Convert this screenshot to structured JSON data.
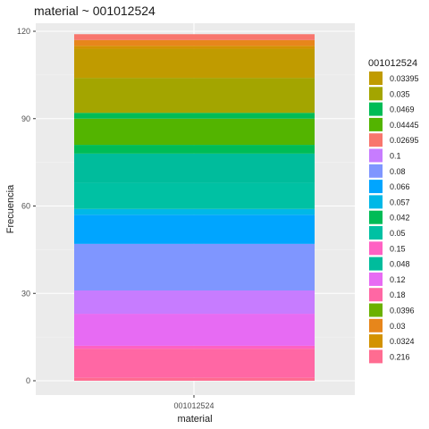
{
  "chart_data": {
    "type": "bar",
    "title": "material ~ 001012524",
    "xlabel": "material",
    "ylabel": "Frecuencia",
    "categories": [
      "001012524"
    ],
    "ylim": [
      0,
      120
    ],
    "yticks": [
      0,
      30,
      60,
      90,
      120
    ],
    "legend_title": "001012524",
    "legend_position": "right",
    "grid": true,
    "series": [
      {
        "name": "0.03395",
        "value": 10,
        "color": "#C09B00"
      },
      {
        "name": "0.035",
        "value": 12,
        "color": "#A3A500"
      },
      {
        "name": "0.0469",
        "value": 3,
        "color": "#00BC56"
      },
      {
        "name": "0.04445",
        "value": 9,
        "color": "#53B400"
      },
      {
        "name": "0.02695",
        "value": 2,
        "color": "#F8766D"
      },
      {
        "name": "0.1",
        "value": 8,
        "color": "#C77CFF"
      },
      {
        "name": "0.08",
        "value": 16,
        "color": "#7F96FF"
      },
      {
        "name": "0.066",
        "value": 10,
        "color": "#00A5FF"
      },
      {
        "name": "0.057",
        "value": 2,
        "color": "#00B8E7"
      },
      {
        "name": "0.042",
        "value": 2,
        "color": "#00BC56"
      },
      {
        "name": "0.05",
        "value": 9,
        "color": "#00C1A3"
      },
      {
        "name": "0.15",
        "value": 1,
        "color": "#FF61C3"
      },
      {
        "name": "0.048",
        "value": 10,
        "color": "#00BC9C"
      },
      {
        "name": "0.12",
        "value": 11,
        "color": "#E76BF3"
      },
      {
        "name": "0.18",
        "value": 10,
        "color": "#FF67A4"
      },
      {
        "name": "0.0396",
        "value": 0,
        "color": "#6BB100"
      },
      {
        "name": "0.03",
        "value": 2,
        "color": "#E7861B"
      },
      {
        "name": "0.0324",
        "value": 1,
        "color": "#D39200"
      },
      {
        "name": "0.216",
        "value": 1,
        "color": "#FF6C91"
      }
    ],
    "stack_order_bottom_to_top": [
      "0.216",
      "0.18",
      "0.15",
      "0.12",
      "0.1",
      "0.08",
      "0.066",
      "0.057",
      "0.05",
      "0.048",
      "0.0469",
      "0.04445",
      "0.042",
      "0.0396",
      "0.035",
      "0.03395",
      "0.0324",
      "0.03",
      "0.02695"
    ]
  }
}
